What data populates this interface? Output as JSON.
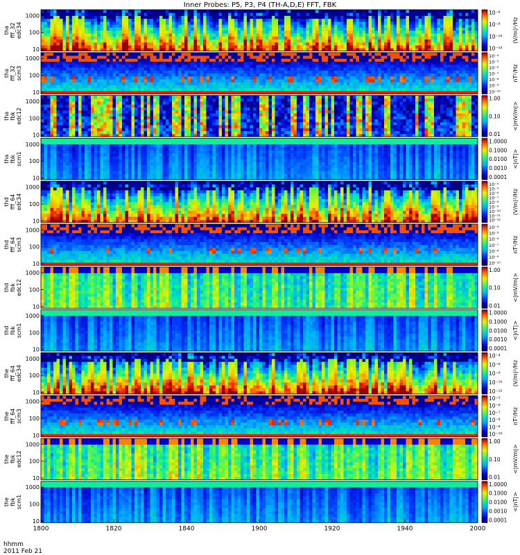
{
  "title": "Inner Probes: P5, P3, P4 (TH-A,D,E) FFT, FBK",
  "footer": {
    "time_label": "hhmm",
    "date_label": "2011 Feb 21"
  },
  "chart_data": {
    "type": "heatmap",
    "x_ticks": [
      "1800",
      "1820",
      "1840",
      "1900",
      "1920",
      "1940",
      "2000"
    ],
    "panels": [
      {
        "name": "tha fff 32 edc34",
        "ylabel": [
          "tha",
          "fff_32",
          "edc34"
        ],
        "y_ticks": [
          "1000",
          "100",
          "10"
        ],
        "colorbar_label": "(V/m)²/Hz",
        "colorbar_ticks": [
          "10⁻⁶",
          "10⁻⁸",
          "10⁻¹⁰",
          "10⁻¹²"
        ],
        "style": "fff_e",
        "seed": 11
      },
      {
        "name": "tha fff 32 scm3",
        "ylabel": [
          "tha",
          "fff_32",
          "scm3"
        ],
        "y_ticks": [
          "1000",
          "100",
          "10"
        ],
        "colorbar_label": "nT²/Hz",
        "colorbar_ticks": [
          "10⁻⁴",
          "10⁻⁵",
          "10⁻⁶",
          "10⁻⁷",
          "10⁻⁸",
          "10⁻⁹",
          "10⁻¹⁰"
        ],
        "style": "fff_b",
        "seed": 12
      },
      {
        "name": "tha fbk edc12",
        "ylabel": [
          "tha",
          "fbk",
          "edc12"
        ],
        "y_ticks": [
          "1000",
          "100",
          "10"
        ],
        "colorbar_label": "<|mV/m|>",
        "colorbar_ticks": [
          "1.00",
          "0.10",
          "0.01"
        ],
        "style": "fbk_e_dark",
        "seed": 13
      },
      {
        "name": "tha fbk scm1",
        "ylabel": [
          "tha",
          "fbk",
          "scm1"
        ],
        "y_ticks": [
          "1000",
          "100",
          "10"
        ],
        "colorbar_label": "<|nT|>",
        "colorbar_ticks": [
          "1.0000",
          "0.1000",
          "0.0100",
          "0.0010",
          "0.0001"
        ],
        "style": "fbk_b",
        "seed": 14
      },
      {
        "name": "thd fff 64 edc34",
        "ylabel": [
          "thd",
          "fff_64",
          "edc34"
        ],
        "y_ticks": [
          "1000",
          "100",
          "10"
        ],
        "colorbar_label": "(V/m)²/Hz",
        "colorbar_ticks": [
          "10⁻⁴",
          "10⁻⁵",
          "10⁻⁶",
          "10⁻⁷",
          "10⁻⁸",
          "10⁻⁹",
          "10⁻¹⁰",
          "10⁻¹¹",
          "10⁻¹²"
        ],
        "style": "fff_e",
        "seed": 21
      },
      {
        "name": "thd fff 64 scm3",
        "ylabel": [
          "thd",
          "fff_64",
          "scm3"
        ],
        "y_ticks": [
          "1000",
          "100",
          "10"
        ],
        "colorbar_label": "nT²/Hz",
        "colorbar_ticks": [
          "10⁻⁴",
          "10⁻⁵",
          "10⁻⁶",
          "10⁻⁷",
          "10⁻⁸",
          "10⁻⁹",
          "10⁻¹⁰"
        ],
        "style": "fff_b",
        "seed": 22
      },
      {
        "name": "thd fbk edc12",
        "ylabel": [
          "thd",
          "fbk",
          "edc12"
        ],
        "y_ticks": [
          "1000",
          "100",
          "10"
        ],
        "colorbar_label": "<|mV/m|>",
        "colorbar_ticks": [
          "1.00",
          "0.10",
          "0.01"
        ],
        "style": "fbk_e",
        "seed": 23
      },
      {
        "name": "thd fbk scm1",
        "ylabel": [
          "thd",
          "fbk",
          "scm1"
        ],
        "y_ticks": [
          "1000",
          "100",
          "10"
        ],
        "colorbar_label": "<|nT|>",
        "colorbar_ticks": [
          "1.0000",
          "0.1000",
          "0.0100",
          "0.0010",
          "0.0001"
        ],
        "style": "fbk_b",
        "seed": 24
      },
      {
        "name": "the fff 64 edc34",
        "ylabel": [
          "the",
          "fff_64",
          "edc34"
        ],
        "y_ticks": [
          "1000",
          "100",
          "10"
        ],
        "colorbar_label": "(V/m)²/Hz",
        "colorbar_ticks": [
          "10⁻⁴",
          "10⁻⁶",
          "10⁻⁸",
          "10⁻¹⁰",
          "10⁻¹²"
        ],
        "style": "fff_e",
        "seed": 31
      },
      {
        "name": "the fff 64 scm3",
        "ylabel": [
          "the",
          "fff_64",
          "scm3"
        ],
        "y_ticks": [
          "1000",
          "100",
          "10"
        ],
        "colorbar_label": "nT²/Hz",
        "colorbar_ticks": [
          "10⁻⁵",
          "10⁻⁶",
          "10⁻⁷",
          "10⁻⁸",
          "10⁻⁹",
          "10⁻¹⁰"
        ],
        "style": "fff_b",
        "seed": 32
      },
      {
        "name": "the fbk edc12",
        "ylabel": [
          "the",
          "fbk",
          "edc12"
        ],
        "y_ticks": [
          "1000",
          "100",
          "10"
        ],
        "colorbar_label": "<|mV/m|>",
        "colorbar_ticks": [
          "1.00",
          "0.10",
          "0.01"
        ],
        "style": "fbk_e",
        "seed": 33
      },
      {
        "name": "the fbk scm1",
        "ylabel": [
          "the",
          "fbk",
          "scm1"
        ],
        "y_ticks": [
          "1000",
          "100",
          "10"
        ],
        "colorbar_label": "<|nT|>",
        "colorbar_ticks": [
          "1.0000",
          "0.1000",
          "0.0100",
          "0.0010",
          "0.0001"
        ],
        "style": "fbk_b",
        "seed": 34
      }
    ]
  }
}
